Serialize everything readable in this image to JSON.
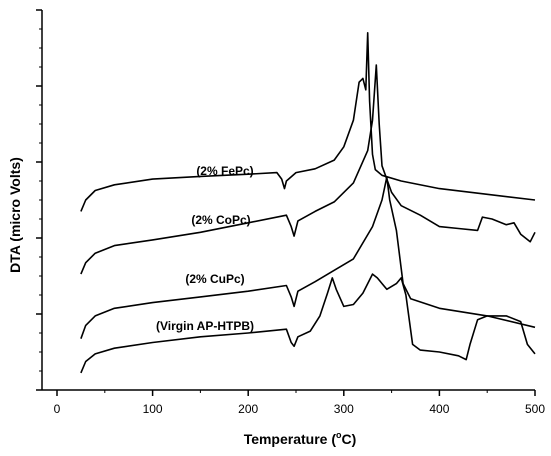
{
  "chart_data": {
    "type": "line",
    "xlabel": {
      "prefix": "Temperature (",
      "sup": "o",
      "suffix": "C)"
    },
    "ylabel": "DTA (micro Volts)",
    "xlim": [
      0,
      500
    ],
    "x_ticks": [
      "0",
      "100",
      "200",
      "300",
      "400",
      "500"
    ],
    "ylim": [
      0,
      10
    ],
    "y_ticks_labeled": false,
    "grid": false,
    "series": [
      {
        "name": "(2% FePc)",
        "points": [
          [
            25,
            4.7
          ],
          [
            30,
            5.0
          ],
          [
            40,
            5.25
          ],
          [
            60,
            5.4
          ],
          [
            100,
            5.55
          ],
          [
            150,
            5.62
          ],
          [
            200,
            5.68
          ],
          [
            230,
            5.72
          ],
          [
            235,
            5.55
          ],
          [
            238,
            5.3
          ],
          [
            240,
            5.5
          ],
          [
            250,
            5.72
          ],
          [
            270,
            5.82
          ],
          [
            290,
            6.05
          ],
          [
            300,
            6.4
          ],
          [
            310,
            7.1
          ],
          [
            316,
            8.1
          ],
          [
            320,
            8.2
          ],
          [
            323,
            7.9
          ],
          [
            325,
            9.4
          ],
          [
            327,
            7.6
          ],
          [
            330,
            6.2
          ],
          [
            333,
            5.8
          ],
          [
            340,
            5.65
          ],
          [
            360,
            5.5
          ],
          [
            400,
            5.3
          ],
          [
            450,
            5.15
          ],
          [
            500,
            5.0
          ]
        ]
      },
      {
        "name": "(2% CoPc)",
        "points": [
          [
            25,
            3.05
          ],
          [
            30,
            3.35
          ],
          [
            40,
            3.6
          ],
          [
            60,
            3.8
          ],
          [
            100,
            3.95
          ],
          [
            150,
            4.15
          ],
          [
            200,
            4.4
          ],
          [
            240,
            4.6
          ],
          [
            245,
            4.3
          ],
          [
            248,
            4.05
          ],
          [
            252,
            4.45
          ],
          [
            270,
            4.7
          ],
          [
            290,
            4.95
          ],
          [
            310,
            5.45
          ],
          [
            325,
            6.3
          ],
          [
            330,
            7.1
          ],
          [
            334,
            8.55
          ],
          [
            337,
            7.0
          ],
          [
            340,
            5.9
          ],
          [
            350,
            5.2
          ],
          [
            360,
            4.85
          ],
          [
            380,
            4.6
          ],
          [
            400,
            4.3
          ],
          [
            420,
            4.25
          ],
          [
            440,
            4.2
          ],
          [
            445,
            4.55
          ],
          [
            455,
            4.5
          ],
          [
            470,
            4.35
          ],
          [
            478,
            4.4
          ],
          [
            485,
            4.1
          ],
          [
            495,
            3.9
          ],
          [
            500,
            4.15
          ]
        ]
      },
      {
        "name": "(2% CuPc)",
        "points": [
          [
            25,
            1.35
          ],
          [
            30,
            1.7
          ],
          [
            40,
            1.95
          ],
          [
            60,
            2.15
          ],
          [
            100,
            2.3
          ],
          [
            150,
            2.45
          ],
          [
            200,
            2.6
          ],
          [
            240,
            2.75
          ],
          [
            245,
            2.45
          ],
          [
            248,
            2.2
          ],
          [
            252,
            2.6
          ],
          [
            270,
            2.85
          ],
          [
            290,
            3.15
          ],
          [
            310,
            3.45
          ],
          [
            330,
            4.3
          ],
          [
            340,
            5.0
          ],
          [
            345,
            5.6
          ],
          [
            348,
            5.0
          ],
          [
            355,
            4.2
          ],
          [
            362,
            2.8
          ],
          [
            370,
            2.4
          ],
          [
            400,
            2.15
          ],
          [
            450,
            1.95
          ],
          [
            500,
            1.65
          ]
        ]
      },
      {
        "name": "(Virgin AP-HTPB)",
        "points": [
          [
            25,
            0.45
          ],
          [
            30,
            0.75
          ],
          [
            40,
            0.95
          ],
          [
            60,
            1.1
          ],
          [
            100,
            1.25
          ],
          [
            150,
            1.4
          ],
          [
            200,
            1.5
          ],
          [
            240,
            1.6
          ],
          [
            245,
            1.25
          ],
          [
            248,
            1.15
          ],
          [
            252,
            1.4
          ],
          [
            265,
            1.55
          ],
          [
            275,
            1.95
          ],
          [
            283,
            2.55
          ],
          [
            288,
            2.95
          ],
          [
            292,
            2.65
          ],
          [
            300,
            2.2
          ],
          [
            310,
            2.25
          ],
          [
            320,
            2.55
          ],
          [
            330,
            3.05
          ],
          [
            335,
            2.95
          ],
          [
            345,
            2.65
          ],
          [
            355,
            2.8
          ],
          [
            360,
            2.95
          ],
          [
            365,
            2.5
          ],
          [
            372,
            1.2
          ],
          [
            380,
            1.05
          ],
          [
            400,
            1.0
          ],
          [
            420,
            0.9
          ],
          [
            428,
            0.8
          ],
          [
            432,
            1.2
          ],
          [
            440,
            1.85
          ],
          [
            450,
            1.95
          ],
          [
            470,
            1.95
          ],
          [
            485,
            1.8
          ],
          [
            492,
            1.2
          ],
          [
            500,
            0.95
          ]
        ]
      }
    ]
  }
}
